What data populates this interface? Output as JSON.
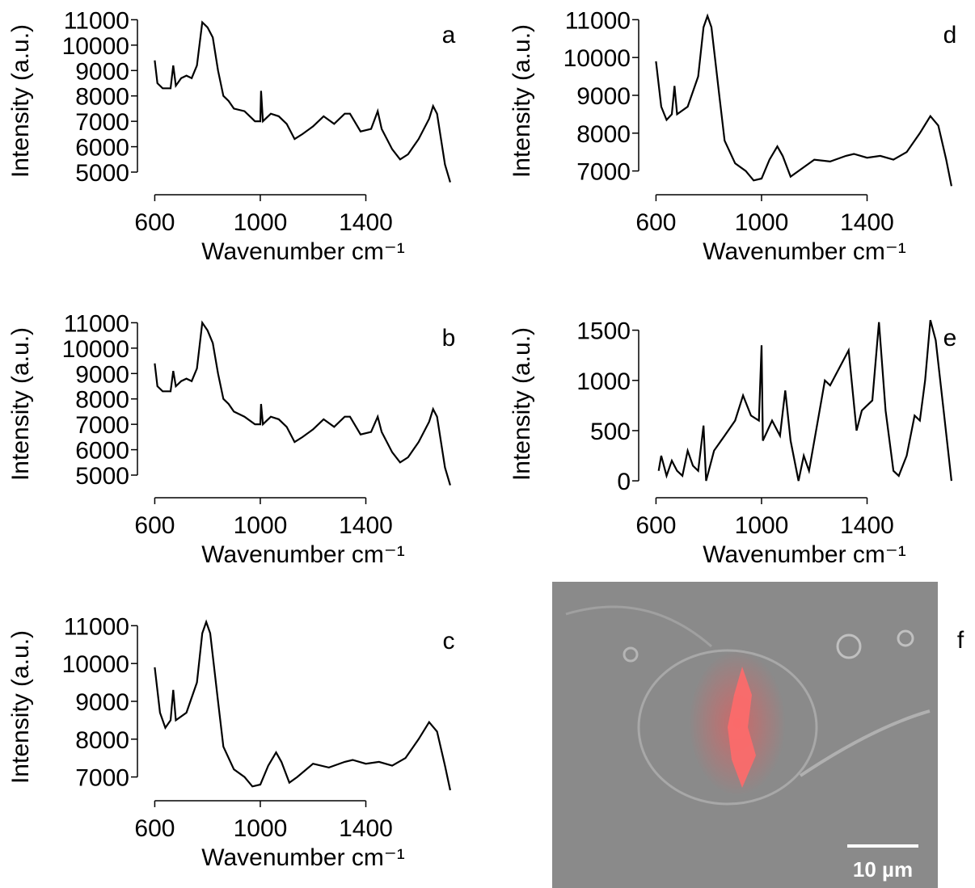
{
  "chart_data": [
    {
      "type": "line",
      "panel": "a",
      "xlabel": "Wavenumber cm⁻¹",
      "ylabel": "Intensity (a.u.)",
      "color": "#000000",
      "x": [
        600,
        610,
        630,
        660,
        670,
        680,
        700,
        720,
        740,
        760,
        780,
        800,
        820,
        840,
        860,
        880,
        900,
        940,
        980,
        1000,
        1003,
        1010,
        1040,
        1070,
        1100,
        1130,
        1160,
        1200,
        1240,
        1280,
        1320,
        1340,
        1380,
        1420,
        1445,
        1460,
        1500,
        1530,
        1560,
        1600,
        1640,
        1655,
        1670,
        1700,
        1720
      ],
      "values": [
        9400,
        8500,
        8300,
        8300,
        9200,
        8400,
        8700,
        8800,
        8700,
        9200,
        10900,
        10700,
        10300,
        9000,
        8000,
        7800,
        7500,
        7400,
        7000,
        7000,
        8200,
        7000,
        7300,
        7200,
        6900,
        6300,
        6500,
        6800,
        7200,
        6900,
        7300,
        7300,
        6600,
        6700,
        7400,
        6700,
        5900,
        5500,
        5700,
        6300,
        7100,
        7600,
        7300,
        5300,
        4600
      ],
      "xlim": [
        565,
        1760
      ],
      "ylim": [
        4300,
        11300
      ],
      "xticks": [
        600,
        1000,
        1400
      ],
      "yticks": [
        5000,
        6000,
        7000,
        8000,
        9000,
        10000,
        11000
      ]
    },
    {
      "type": "line",
      "panel": "b",
      "xlabel": "Wavenumber cm⁻¹",
      "ylabel": "Intensity (a.u.)",
      "color": "#000000",
      "x": [
        600,
        610,
        630,
        660,
        670,
        680,
        700,
        720,
        740,
        760,
        780,
        800,
        820,
        840,
        860,
        880,
        900,
        940,
        980,
        1000,
        1003,
        1010,
        1040,
        1070,
        1100,
        1130,
        1160,
        1200,
        1240,
        1280,
        1320,
        1340,
        1380,
        1420,
        1445,
        1460,
        1500,
        1530,
        1560,
        1600,
        1640,
        1655,
        1670,
        1700,
        1720
      ],
      "values": [
        9400,
        8500,
        8300,
        8300,
        9100,
        8500,
        8700,
        8800,
        8700,
        9200,
        11000,
        10700,
        10200,
        9000,
        8000,
        7800,
        7500,
        7300,
        7000,
        7000,
        7800,
        7000,
        7300,
        7200,
        6900,
        6300,
        6500,
        6800,
        7200,
        6900,
        7300,
        7300,
        6600,
        6700,
        7300,
        6700,
        5900,
        5500,
        5700,
        6300,
        7100,
        7600,
        7300,
        5300,
        4600
      ],
      "xlim": [
        565,
        1760
      ],
      "ylim": [
        4300,
        11300
      ],
      "xticks": [
        600,
        1000,
        1400
      ],
      "yticks": [
        5000,
        6000,
        7000,
        8000,
        9000,
        10000,
        11000
      ]
    },
    {
      "type": "line",
      "panel": "c",
      "xlabel": "Wavenumber cm⁻¹",
      "ylabel": "Intensity (a.u.)",
      "color": "#000000",
      "x": [
        600,
        620,
        640,
        660,
        670,
        680,
        720,
        760,
        780,
        795,
        810,
        840,
        860,
        900,
        940,
        970,
        1000,
        1030,
        1060,
        1080,
        1110,
        1140,
        1200,
        1260,
        1320,
        1350,
        1400,
        1450,
        1500,
        1550,
        1600,
        1640,
        1670,
        1700,
        1720
      ],
      "values": [
        9900,
        8700,
        8300,
        8500,
        9300,
        8500,
        8700,
        9500,
        10800,
        11100,
        10800,
        9000,
        7800,
        7200,
        7000,
        6750,
        6800,
        7300,
        7650,
        7400,
        6850,
        7000,
        7350,
        7250,
        7400,
        7450,
        7350,
        7400,
        7300,
        7500,
        8000,
        8450,
        8200,
        7300,
        6650
      ],
      "xlim": [
        565,
        1760
      ],
      "ylim": [
        6500,
        11200
      ],
      "xticks": [
        600,
        1000,
        1400
      ],
      "yticks": [
        7000,
        8000,
        9000,
        10000,
        11000
      ]
    },
    {
      "type": "line",
      "panel": "d",
      "xlabel": "Wavenumber cm⁻¹",
      "ylabel": "Intensity (a.u.)",
      "color": "#000000",
      "x": [
        600,
        620,
        640,
        660,
        670,
        680,
        720,
        760,
        780,
        795,
        810,
        840,
        860,
        900,
        940,
        970,
        1000,
        1030,
        1060,
        1080,
        1110,
        1140,
        1200,
        1260,
        1320,
        1350,
        1400,
        1450,
        1500,
        1550,
        1600,
        1640,
        1670,
        1700,
        1720
      ],
      "values": [
        9900,
        8700,
        8350,
        8500,
        9250,
        8500,
        8700,
        9500,
        10800,
        11100,
        10800,
        9000,
        7800,
        7200,
        7000,
        6750,
        6800,
        7300,
        7650,
        7400,
        6850,
        7000,
        7300,
        7250,
        7400,
        7450,
        7350,
        7400,
        7300,
        7500,
        8000,
        8450,
        8200,
        7300,
        6600
      ],
      "xlim": [
        565,
        1760
      ],
      "ylim": [
        6500,
        11200
      ],
      "xticks": [
        600,
        1000,
        1400
      ],
      "yticks": [
        7000,
        8000,
        9000,
        10000,
        11000
      ]
    },
    {
      "type": "line",
      "panel": "e",
      "xlabel": "Wavenumber cm⁻¹",
      "ylabel": "Intensity (a.u.)",
      "color": "#000000",
      "x": [
        610,
        620,
        640,
        660,
        680,
        700,
        720,
        740,
        760,
        780,
        790,
        820,
        860,
        900,
        930,
        960,
        990,
        1000,
        1005,
        1040,
        1070,
        1090,
        1110,
        1140,
        1160,
        1180,
        1220,
        1240,
        1260,
        1300,
        1330,
        1360,
        1380,
        1420,
        1445,
        1470,
        1500,
        1520,
        1550,
        1580,
        1600,
        1620,
        1640,
        1660,
        1690,
        1720
      ],
      "values": [
        100,
        250,
        50,
        200,
        100,
        50,
        300,
        150,
        100,
        550,
        0,
        300,
        450,
        600,
        850,
        650,
        600,
        1350,
        400,
        600,
        450,
        900,
        400,
        0,
        250,
        100,
        700,
        1000,
        950,
        1150,
        1300,
        500,
        700,
        800,
        1580,
        700,
        100,
        50,
        250,
        650,
        600,
        1000,
        1600,
        1400,
        700,
        0
      ],
      "xlim": [
        565,
        1760
      ],
      "ylim": [
        -120,
        1650
      ],
      "xticks": [
        600,
        1000,
        1400
      ],
      "yticks": [
        0,
        500,
        1000,
        1500
      ]
    }
  ],
  "micrograph": {
    "panel": "f",
    "scale_bar": "10 µm"
  }
}
